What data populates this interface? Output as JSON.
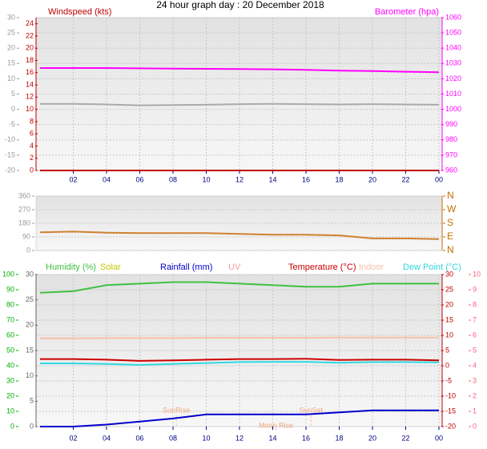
{
  "chart_data": [
    {
      "type": "line",
      "title": "24 hour graph day : 20 December 2018",
      "x": [
        0,
        2,
        4,
        6,
        8,
        10,
        12,
        14,
        16,
        18,
        20,
        22,
        24
      ],
      "xlim": [
        0,
        24
      ],
      "xticks": [
        {
          "value": 2,
          "label": "02"
        },
        {
          "value": 4,
          "label": "04"
        },
        {
          "value": 6,
          "label": "06"
        },
        {
          "value": 8,
          "label": "08"
        },
        10,
        12,
        14,
        16,
        18,
        20,
        22,
        {
          "value": 24,
          "label": "00"
        }
      ],
      "ylim": [
        -20,
        30
      ],
      "yticks": [
        -20,
        -15,
        -10,
        -5,
        0,
        5,
        10,
        15,
        20,
        25,
        30
      ],
      "y3lim": [
        0,
        25
      ],
      "y3ticks": [
        0,
        2,
        4,
        6,
        8,
        10,
        12,
        14,
        16,
        18,
        20,
        22,
        24
      ],
      "y2lim": [
        960,
        1060
      ],
      "y2ticks": [
        960,
        970,
        980,
        990,
        1000,
        1010,
        1020,
        1030,
        1040,
        1050,
        1060
      ],
      "axis_colors": {
        "y": "#999999",
        "y3": "#c00000",
        "y2": "#ff00ff"
      },
      "grid": true,
      "series": [
        {
          "name": "Windspeed (kts)",
          "color": "#c00000",
          "axis": "y3",
          "values": [
            0,
            0,
            0,
            0,
            0,
            0,
            0,
            0,
            0,
            0,
            0,
            0,
            0
          ]
        },
        {
          "color": "#aaaaaa",
          "axis": "y",
          "values": [
            1.8,
            1.8,
            1.6,
            1.3,
            1.4,
            1.5,
            1.7,
            1.8,
            1.7,
            1.6,
            1.7,
            1.6,
            1.5
          ]
        },
        {
          "name": "Barometer (hpa)",
          "color": "#ff00ff",
          "axis": "y2",
          "values": [
            1027,
            1027,
            1027,
            1026.8,
            1026.6,
            1026.5,
            1026.4,
            1026.2,
            1025.8,
            1025.3,
            1025,
            1024.6,
            1024.3
          ]
        }
      ]
    },
    {
      "type": "line",
      "x": [
        0,
        2,
        4,
        6,
        8,
        10,
        12,
        14,
        16,
        18,
        20,
        22,
        24
      ],
      "xlim": [
        0,
        24
      ],
      "ylim": [
        0,
        360
      ],
      "yticks": [
        0,
        90,
        180,
        270,
        360
      ],
      "y2lim": [
        0,
        360
      ],
      "y2ticks": [
        {
          "value": 0,
          "label": "N"
        },
        {
          "value": 90,
          "label": "E"
        },
        {
          "value": 180,
          "label": "S"
        },
        {
          "value": 270,
          "label": "W"
        },
        {
          "value": 360,
          "label": "N"
        }
      ],
      "axis_colors": {
        "y": "#999999",
        "y2": "#c07000"
      },
      "grid": true,
      "series": [
        {
          "color": "#d08030",
          "axis": "y",
          "values": [
            120,
            125,
            118,
            115,
            115,
            115,
            110,
            105,
            105,
            100,
            80,
            80,
            75
          ]
        }
      ]
    },
    {
      "type": "line",
      "x": [
        0,
        2,
        4,
        6,
        8,
        10,
        12,
        14,
        16,
        18,
        20,
        22,
        24
      ],
      "xlim": [
        0,
        24
      ],
      "xticks": [
        {
          "value": 2,
          "label": "02"
        },
        {
          "value": 4,
          "label": "04"
        },
        {
          "value": 6,
          "label": "06"
        },
        {
          "value": 8,
          "label": "08"
        },
        10,
        12,
        14,
        16,
        18,
        20,
        22,
        {
          "value": 24,
          "label": "00"
        }
      ],
      "ylim": [
        0,
        100
      ],
      "yticks": [
        0,
        10,
        20,
        30,
        40,
        50,
        60,
        70,
        80,
        90,
        100
      ],
      "y3lim": [
        0,
        30
      ],
      "y3ticks": [
        0,
        5,
        10,
        15,
        20,
        25,
        30
      ],
      "y2lim": [
        -20,
        30
      ],
      "y2ticks": [
        -20,
        -15,
        -10,
        -5,
        0,
        5,
        10,
        15,
        20,
        25,
        30
      ],
      "y4lim": [
        0,
        10
      ],
      "y4ticks": [
        0,
        1,
        2,
        3,
        4,
        5,
        6,
        7,
        8,
        9,
        10
      ],
      "axis_colors": {
        "y": "#00b000",
        "y3": "#666666",
        "y2": "#c00000",
        "y4": "#ff6080"
      },
      "grid": true,
      "series": [
        {
          "name": "Humidity (%)",
          "color": "#40c040",
          "axis": "y",
          "values": [
            88,
            89,
            93,
            94,
            95,
            95,
            94,
            93,
            92,
            92,
            94,
            94,
            94
          ]
        },
        {
          "name": "Solar",
          "color": "#c8c800",
          "axis": "y3",
          "values": [
            null,
            null,
            null,
            null,
            null,
            null,
            null,
            null,
            null,
            null,
            null,
            null,
            null
          ]
        },
        {
          "name": "Rainfall (mm)",
          "color": "#0000cc",
          "axis": "y3",
          "values": [
            0,
            0,
            0.4,
            1,
            1.6,
            2.4,
            2.4,
            2.4,
            2.4,
            2.8,
            3.2,
            3.2,
            3.2
          ]
        },
        {
          "name": "UV",
          "color": "#f0a0a0",
          "axis": "y4",
          "values": [
            null,
            null,
            null,
            null,
            null,
            null,
            null,
            null,
            null,
            null,
            null,
            null,
            null
          ]
        },
        {
          "name": "Temperature (°C)",
          "color": "#cc0000",
          "axis": "y2",
          "values": [
            2.2,
            2.2,
            2.0,
            1.6,
            1.8,
            2.0,
            2.2,
            2.2,
            2.3,
            1.9,
            2.0,
            2.0,
            1.8
          ]
        },
        {
          "name": "Indoor",
          "color": "#f8c0a8",
          "axis": "y2",
          "values": [
            9,
            9,
            9.1,
            9.1,
            9.1,
            9.2,
            9.2,
            9.2,
            9.2,
            9.3,
            9.3,
            9.3,
            9.3
          ]
        },
        {
          "name": "Dew Point (°C)",
          "color": "#30d8e0",
          "axis": "y2",
          "values": [
            0.8,
            0.8,
            0.6,
            0.3,
            0.6,
            0.9,
            1.2,
            1.3,
            1.3,
            1.0,
            1.2,
            1.2,
            1.1
          ]
        }
      ],
      "annotations": [
        {
          "text": "SunRise",
          "x": 8.2
        },
        {
          "text": "SunSet",
          "x": 16.3
        },
        {
          "text": "Moon Rise",
          "x": 14.2
        }
      ]
    }
  ]
}
